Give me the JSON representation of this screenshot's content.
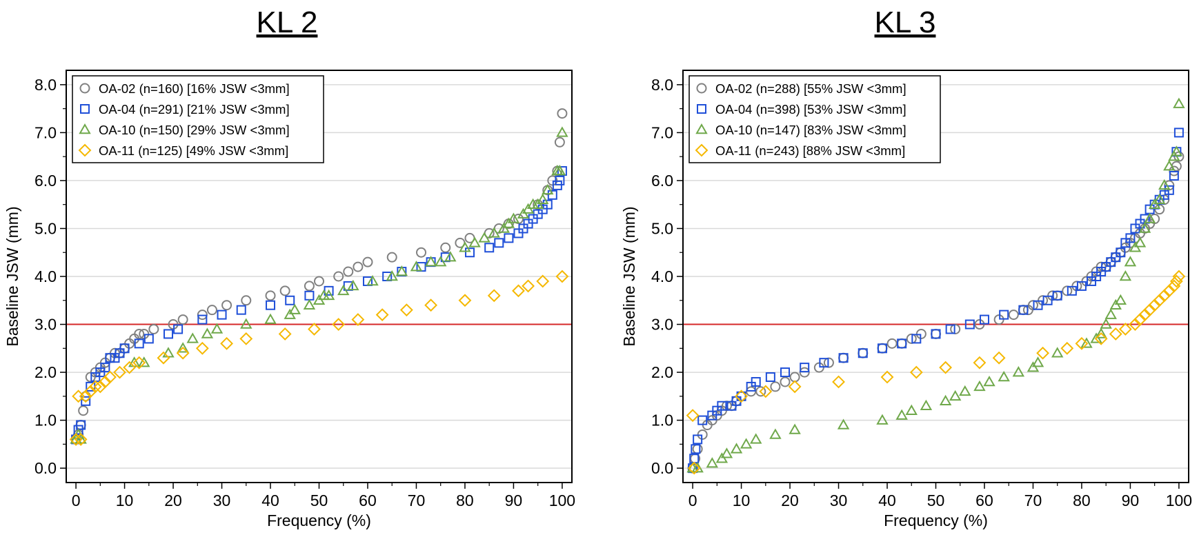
{
  "chart_data": [
    {
      "type": "scatter",
      "title": "KL 2",
      "xlabel": "Frequency (%)",
      "ylabel": "Baseline JSW (mm)",
      "xlim": [
        -2,
        102
      ],
      "ylim": [
        -0.3,
        8.3
      ],
      "xticks": [
        "0",
        "10",
        "20",
        "30",
        "40",
        "50",
        "60",
        "70",
        "80",
        "90",
        "100"
      ],
      "yticks": [
        "0.0",
        "1.0",
        "2.0",
        "3.0",
        "4.0",
        "5.0",
        "6.0",
        "7.0",
        "8.0"
      ],
      "grid": "horizontal",
      "reference_line": {
        "y": 3.0,
        "color": "#d62728"
      },
      "legend_position": "top-left",
      "series": [
        {
          "name": "OA-02 (n=160) [16% JSW <3mm]",
          "marker": "circle",
          "color": "#808080",
          "x": [
            0,
            0.5,
            1,
            1.5,
            2,
            3,
            4,
            5,
            6,
            7,
            8,
            9,
            10,
            11,
            12,
            13,
            14,
            16,
            20,
            22,
            26,
            28,
            31,
            35,
            40,
            43,
            48,
            50,
            54,
            56,
            58,
            60,
            65,
            71,
            76,
            79,
            81,
            85,
            87,
            89,
            91,
            95,
            97,
            98,
            99,
            99.5,
            100
          ],
          "y": [
            0.6,
            0.7,
            0.9,
            1.2,
            1.5,
            1.9,
            2.0,
            2.1,
            2.2,
            2.3,
            2.4,
            2.4,
            2.5,
            2.6,
            2.7,
            2.8,
            2.8,
            2.9,
            3.0,
            3.1,
            3.2,
            3.3,
            3.4,
            3.5,
            3.6,
            3.7,
            3.8,
            3.9,
            4.0,
            4.1,
            4.2,
            4.3,
            4.4,
            4.5,
            4.6,
            4.7,
            4.8,
            4.9,
            5.0,
            5.1,
            5.2,
            5.5,
            5.8,
            6.0,
            6.2,
            6.8,
            7.4
          ]
        },
        {
          "name": "OA-04 (n=291) [21% JSW <3mm]",
          "marker": "square",
          "color": "#1f4fd8",
          "x": [
            0,
            0.5,
            1,
            2,
            3,
            4,
            5,
            6,
            7,
            8,
            9,
            10,
            13,
            15,
            19,
            21,
            26,
            30,
            34,
            40,
            44,
            48,
            52,
            56,
            60,
            64,
            67,
            71,
            73,
            76,
            81,
            85,
            87,
            89,
            91,
            92,
            93,
            94,
            95,
            96,
            97,
            98,
            99,
            99.5,
            100
          ],
          "y": [
            0.6,
            0.8,
            0.9,
            1.4,
            1.7,
            1.9,
            2.0,
            2.1,
            2.3,
            2.3,
            2.4,
            2.5,
            2.6,
            2.7,
            2.8,
            2.9,
            3.1,
            3.2,
            3.3,
            3.4,
            3.5,
            3.6,
            3.7,
            3.8,
            3.9,
            4.0,
            4.1,
            4.2,
            4.3,
            4.4,
            4.5,
            4.6,
            4.7,
            4.8,
            4.9,
            5.0,
            5.1,
            5.2,
            5.3,
            5.4,
            5.5,
            5.7,
            5.9,
            6.0,
            6.2
          ]
        },
        {
          "name": "OA-10 (n=150) [29% JSW <3mm]",
          "marker": "triangle",
          "color": "#6fa84a",
          "x": [
            0,
            0.5,
            1,
            12,
            14,
            19,
            22,
            24,
            27,
            29,
            35,
            40,
            44,
            45,
            48,
            50,
            51,
            52,
            55,
            57,
            61,
            65,
            67,
            70,
            73,
            75,
            77,
            80,
            82,
            84,
            86,
            88,
            89,
            90,
            92,
            93,
            94,
            95,
            96,
            97,
            99,
            99.5,
            100
          ],
          "y": [
            0.6,
            0.7,
            0.6,
            2.2,
            2.2,
            2.4,
            2.5,
            2.7,
            2.8,
            2.9,
            3.0,
            3.1,
            3.2,
            3.3,
            3.4,
            3.5,
            3.6,
            3.6,
            3.7,
            3.8,
            3.9,
            4.0,
            4.1,
            4.2,
            4.3,
            4.3,
            4.4,
            4.6,
            4.7,
            4.8,
            4.9,
            5.0,
            5.1,
            5.2,
            5.3,
            5.4,
            5.5,
            5.5,
            5.6,
            5.8,
            6.2,
            6.2,
            7.0
          ]
        },
        {
          "name": "OA-11 (n=125) [49% JSW <3mm]",
          "marker": "diamond",
          "color": "#f5b800",
          "x": [
            0,
            0.5,
            1,
            2,
            3,
            4,
            5,
            6,
            7,
            9,
            11,
            13,
            18,
            22,
            26,
            31,
            35,
            43,
            49,
            54,
            58,
            63,
            68,
            73,
            80,
            86,
            91,
            93,
            96,
            100
          ],
          "y": [
            0.6,
            1.5,
            0.6,
            1.5,
            1.6,
            1.7,
            1.7,
            1.8,
            1.9,
            2.0,
            2.1,
            2.2,
            2.3,
            2.4,
            2.5,
            2.6,
            2.7,
            2.8,
            2.9,
            3.0,
            3.1,
            3.2,
            3.3,
            3.4,
            3.5,
            3.6,
            3.7,
            3.8,
            3.9,
            4.0
          ]
        }
      ]
    },
    {
      "type": "scatter",
      "title": "KL 3",
      "xlabel": "Frequency (%)",
      "ylabel": "Baseline JSW (mm)",
      "xlim": [
        -2,
        102
      ],
      "ylim": [
        -0.3,
        8.3
      ],
      "xticks": [
        "0",
        "10",
        "20",
        "30",
        "40",
        "50",
        "60",
        "70",
        "80",
        "90",
        "100"
      ],
      "yticks": [
        "0.0",
        "1.0",
        "2.0",
        "3.0",
        "4.0",
        "5.0",
        "6.0",
        "7.0",
        "8.0"
      ],
      "grid": "horizontal",
      "reference_line": {
        "y": 3.0,
        "color": "#d62728"
      },
      "legend_position": "top-left",
      "series": [
        {
          "name": "OA-02 (n=288) [55% JSW <3mm]",
          "marker": "circle",
          "color": "#808080",
          "x": [
            0,
            0.5,
            1,
            2,
            3,
            4,
            5,
            6,
            7,
            8,
            9,
            10,
            12,
            14,
            17,
            19,
            21,
            23,
            26,
            28,
            31,
            35,
            39,
            41,
            43,
            45,
            47,
            50,
            54,
            59,
            63,
            66,
            68,
            69,
            70,
            72,
            74,
            75,
            77,
            79,
            81,
            82,
            83,
            84,
            85,
            86,
            87,
            88,
            89,
            90,
            91,
            92,
            93,
            94,
            95,
            96,
            97,
            98,
            99,
            99.5,
            100
          ],
          "y": [
            0.0,
            0.2,
            0.4,
            0.7,
            0.9,
            1.0,
            1.1,
            1.2,
            1.3,
            1.3,
            1.4,
            1.5,
            1.6,
            1.6,
            1.7,
            1.8,
            1.9,
            2.0,
            2.1,
            2.2,
            2.3,
            2.4,
            2.5,
            2.6,
            2.6,
            2.7,
            2.8,
            2.8,
            2.9,
            3.0,
            3.1,
            3.2,
            3.3,
            3.3,
            3.4,
            3.5,
            3.6,
            3.6,
            3.7,
            3.8,
            3.9,
            4.0,
            4.1,
            4.2,
            4.2,
            4.3,
            4.4,
            4.5,
            4.6,
            4.7,
            4.8,
            4.9,
            5.0,
            5.1,
            5.2,
            5.4,
            5.6,
            5.9,
            6.2,
            6.3,
            6.5
          ]
        },
        {
          "name": "OA-04 (n=398) [53% JSW <3mm]",
          "marker": "square",
          "color": "#1f4fd8",
          "x": [
            0,
            0.3,
            0.6,
            1,
            2,
            4,
            5,
            6,
            8,
            9,
            10,
            12,
            13,
            16,
            19,
            23,
            27,
            31,
            35,
            39,
            43,
            46,
            50,
            53,
            57,
            60,
            64,
            68,
            71,
            73,
            75,
            78,
            80,
            82,
            83,
            84,
            85,
            86,
            87,
            88,
            89,
            90,
            91,
            92,
            93,
            94,
            95,
            96,
            97,
            98,
            99,
            99.5,
            100
          ],
          "y": [
            0.0,
            0.2,
            0.4,
            0.6,
            1.0,
            1.1,
            1.2,
            1.3,
            1.3,
            1.4,
            1.5,
            1.7,
            1.8,
            1.9,
            2.0,
            2.1,
            2.2,
            2.3,
            2.4,
            2.5,
            2.6,
            2.7,
            2.8,
            2.9,
            3.0,
            3.1,
            3.2,
            3.3,
            3.4,
            3.5,
            3.6,
            3.7,
            3.8,
            3.9,
            4.0,
            4.1,
            4.2,
            4.3,
            4.4,
            4.5,
            4.7,
            4.8,
            5.0,
            5.1,
            5.2,
            5.4,
            5.5,
            5.6,
            5.7,
            5.8,
            6.1,
            6.6,
            7.0
          ]
        },
        {
          "name": "OA-10 (n=147) [83% JSW <3mm]",
          "marker": "triangle",
          "color": "#6fa84a",
          "x": [
            0,
            1,
            4,
            6,
            7,
            9,
            11,
            13,
            17,
            21,
            31,
            39,
            43,
            45,
            48,
            52,
            54,
            56,
            59,
            61,
            64,
            67,
            70,
            71,
            75,
            81,
            83,
            84,
            85,
            86,
            87,
            88,
            89,
            90,
            91,
            92,
            93,
            94,
            95,
            96,
            97,
            98,
            99,
            99.5,
            100
          ],
          "y": [
            0.0,
            0.0,
            0.1,
            0.2,
            0.3,
            0.4,
            0.5,
            0.6,
            0.7,
            0.8,
            0.9,
            1.0,
            1.1,
            1.2,
            1.3,
            1.4,
            1.5,
            1.6,
            1.7,
            1.8,
            1.9,
            2.0,
            2.1,
            2.2,
            2.4,
            2.6,
            2.7,
            2.8,
            3.0,
            3.2,
            3.4,
            3.5,
            4.0,
            4.3,
            4.6,
            4.7,
            5.0,
            5.2,
            5.5,
            5.6,
            5.9,
            6.3,
            6.5,
            6.6,
            7.6
          ]
        },
        {
          "name": "OA-11 (n=243) [88% JSW <3mm]",
          "marker": "diamond",
          "color": "#f5b800",
          "x": [
            0,
            0.3,
            10,
            15,
            21,
            30,
            40,
            46,
            52,
            59,
            63,
            72,
            77,
            80,
            84,
            87,
            89,
            91,
            92,
            93,
            94,
            95,
            96,
            97,
            98,
            99,
            99.5,
            100
          ],
          "y": [
            1.1,
            0.0,
            1.5,
            1.6,
            1.7,
            1.8,
            1.9,
            2.0,
            2.1,
            2.2,
            2.3,
            2.4,
            2.5,
            2.6,
            2.7,
            2.8,
            2.9,
            3.0,
            3.1,
            3.2,
            3.3,
            3.4,
            3.5,
            3.6,
            3.7,
            3.8,
            3.9,
            4.0
          ]
        }
      ]
    }
  ]
}
